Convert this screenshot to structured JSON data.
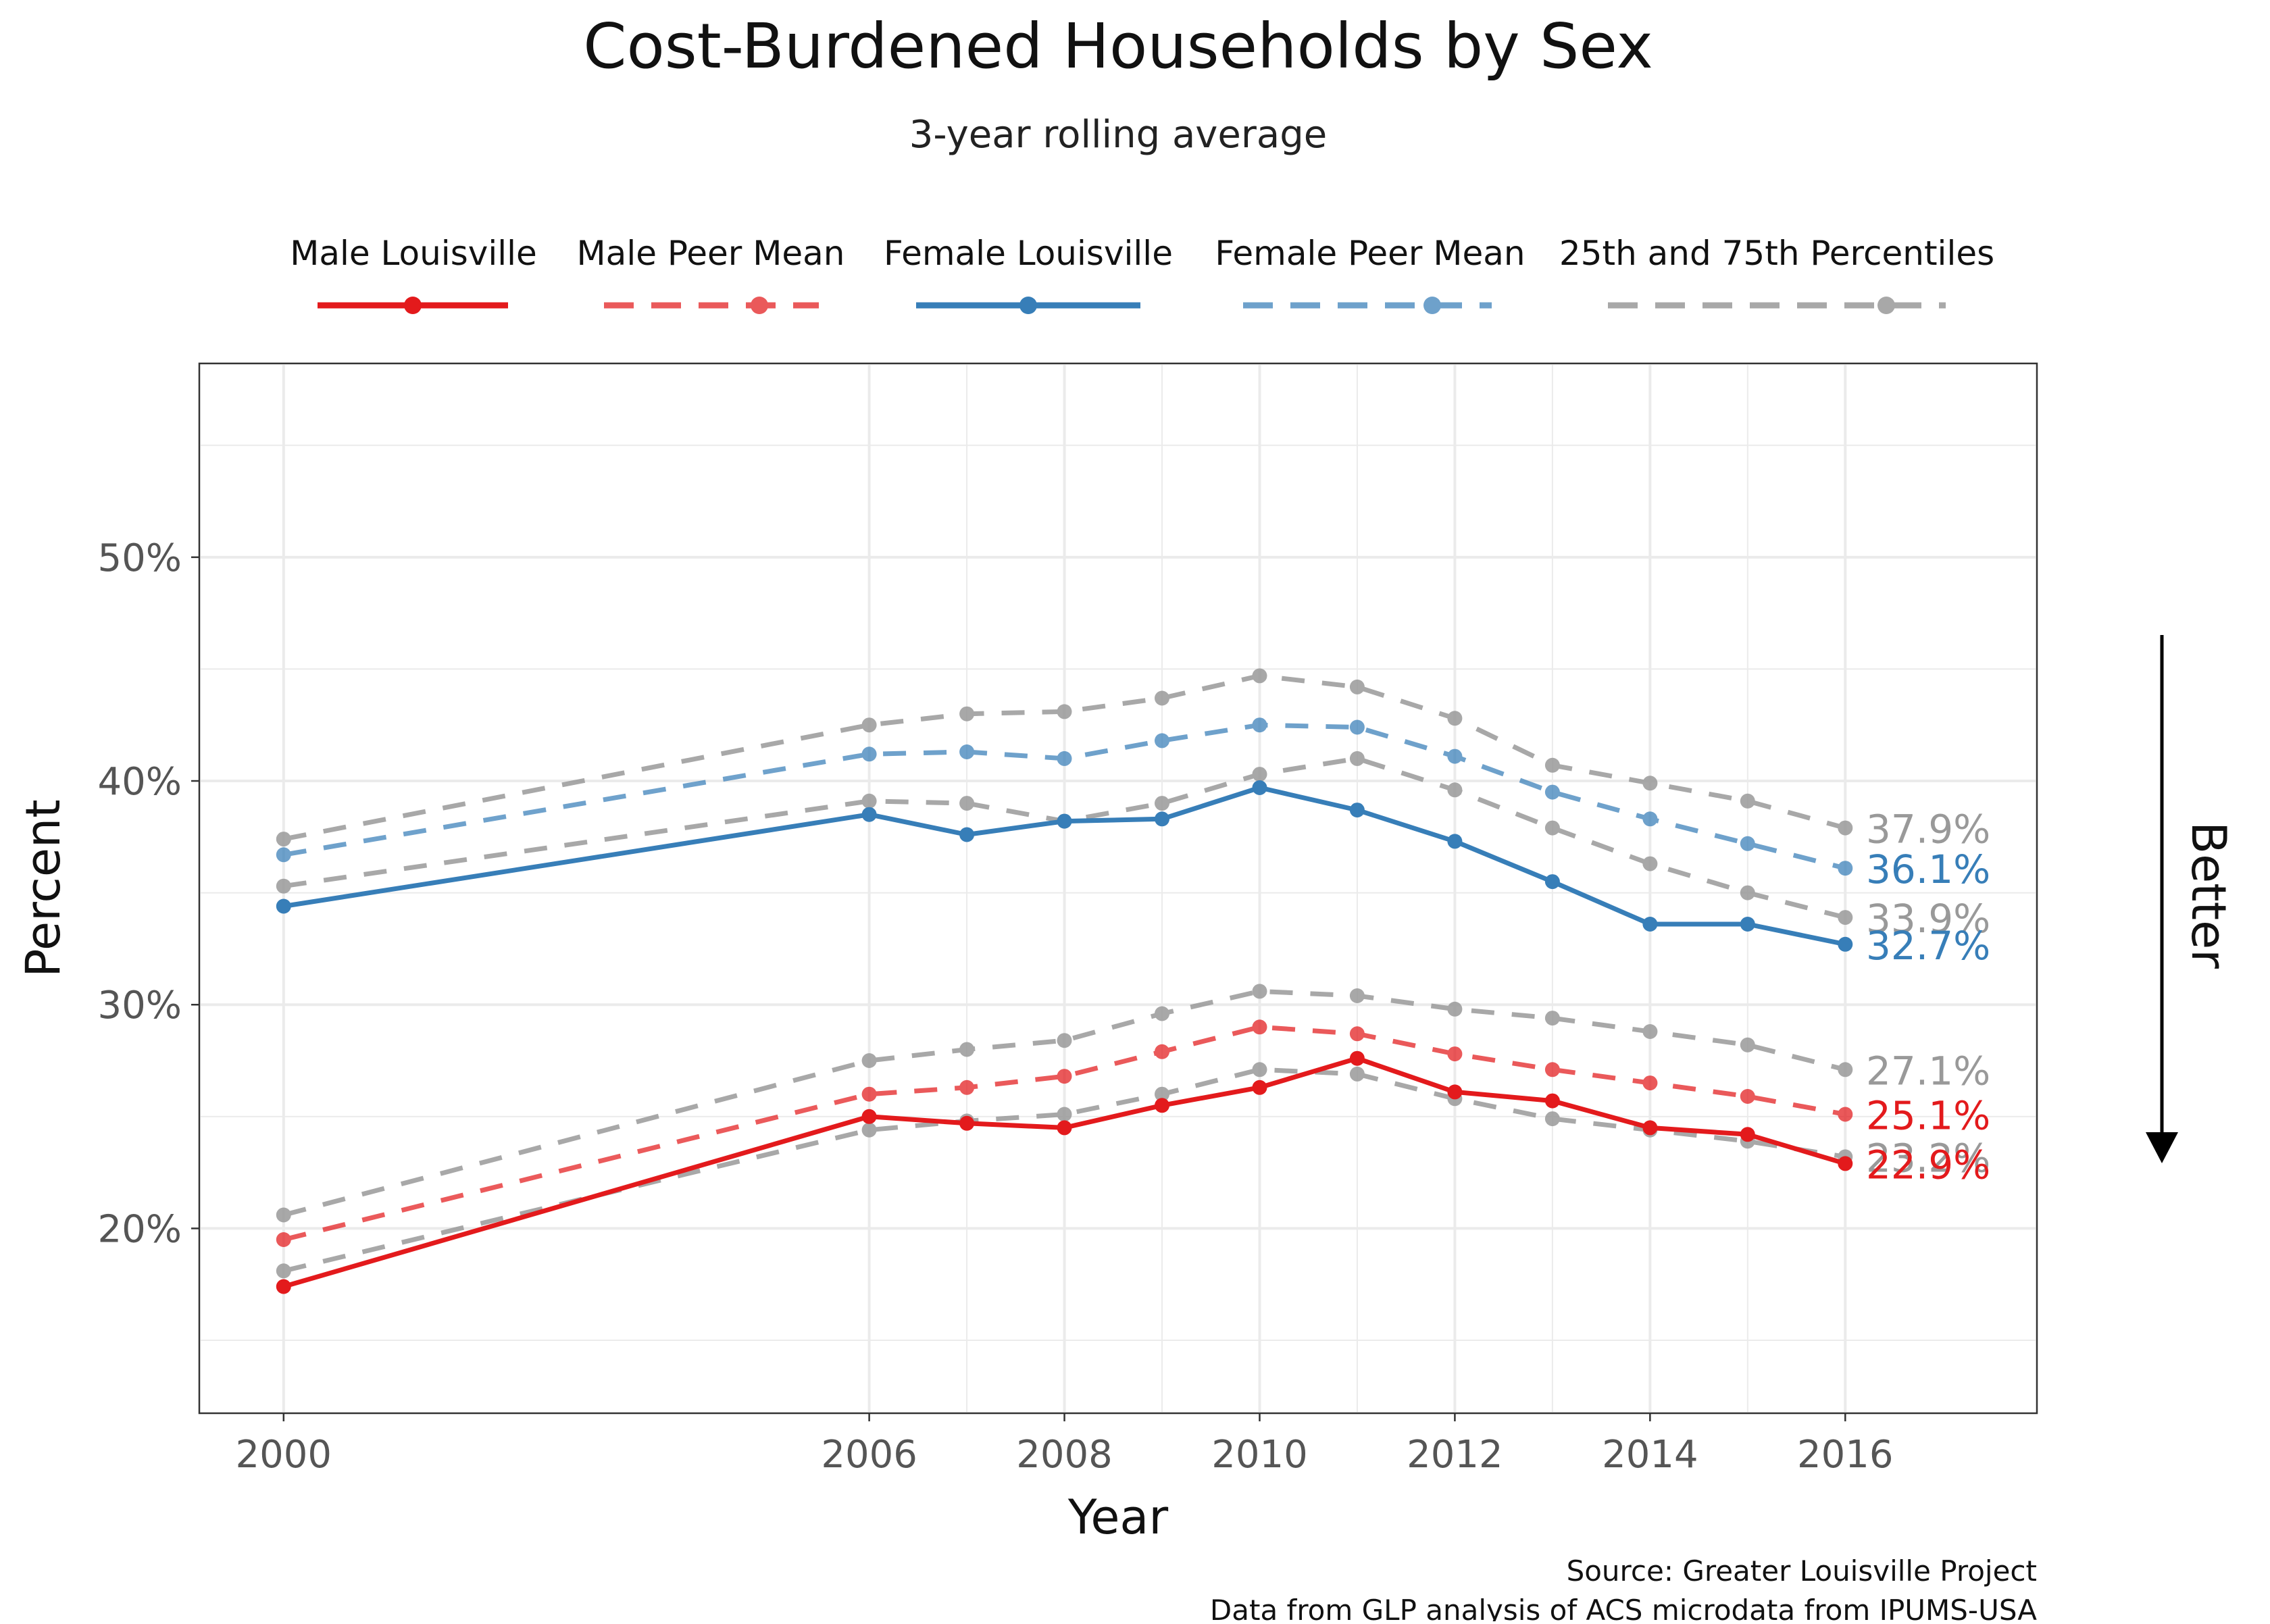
{
  "title": "Cost-Burdened Households by Sex",
  "subtitle": "3-year rolling average",
  "source_line1": "Source: Greater Louisville Project",
  "source_line2": "Data from GLP analysis of ACS microdata from IPUMS-USA",
  "better_label": "Better",
  "colors": {
    "male": "#e31a1c",
    "female": "#377eb8",
    "percentile": "#999999",
    "tick_text": "#555555",
    "grid": "#ebebeb"
  },
  "chart_data": {
    "type": "line",
    "title": "Cost-Burdened Households by Sex",
    "xlabel": "Year",
    "ylabel": "Percent",
    "xlim": [
      1999.15,
      2017.95
    ],
    "ylim": [
      11.8,
      58.6
    ],
    "grid": true,
    "legend_position": "top",
    "x_ticks": [
      2000,
      2006,
      2008,
      2010,
      2012,
      2014,
      2016
    ],
    "x_tick_labels": [
      "2000",
      "2006",
      "2008",
      "2010",
      "2012",
      "2014",
      "2016"
    ],
    "x_minor_ticks": [
      2007,
      2009,
      2011,
      2013,
      2015
    ],
    "y_ticks": [
      20,
      30,
      40,
      50
    ],
    "y_tick_labels": [
      "20%",
      "30%",
      "40%",
      "50%"
    ],
    "y_minor_ticks": [
      15,
      25,
      35,
      45,
      55
    ],
    "x": [
      2000,
      2006,
      2007,
      2008,
      2009,
      2010,
      2011,
      2012,
      2013,
      2014,
      2015,
      2016
    ],
    "legend": [
      "Male Louisville",
      "Male Peer Mean",
      "Female Louisville",
      "Female Peer Mean",
      "25th and 75th Percentiles"
    ],
    "series": [
      {
        "name": "25th and 75th Percentiles",
        "group": "female",
        "role": "percentile",
        "color": "#999999",
        "values": [
          37.4,
          42.5,
          43.0,
          43.1,
          43.7,
          44.7,
          44.2,
          42.8,
          40.7,
          39.9,
          39.1,
          37.9
        ]
      },
      {
        "name": "25th and 75th Percentiles",
        "group": "female",
        "role": "percentile",
        "color": "#999999",
        "values": [
          35.3,
          39.1,
          39.0,
          38.2,
          39.0,
          40.3,
          41.0,
          39.6,
          37.9,
          36.3,
          35.0,
          33.9
        ]
      },
      {
        "name": "25th and 75th Percentiles",
        "group": "male",
        "role": "percentile",
        "color": "#999999",
        "values": [
          20.6,
          27.5,
          28.0,
          28.4,
          29.6,
          30.6,
          30.4,
          29.8,
          29.4,
          28.8,
          28.2,
          27.1
        ]
      },
      {
        "name": "25th and 75th Percentiles",
        "group": "male",
        "role": "percentile",
        "color": "#999999",
        "values": [
          18.1,
          24.4,
          24.8,
          25.1,
          26.0,
          27.1,
          26.9,
          25.8,
          24.9,
          24.4,
          23.9,
          23.2
        ]
      },
      {
        "name": "Female Peer Mean",
        "group": "female",
        "role": "peer",
        "color": "#377eb8",
        "values": [
          36.7,
          41.2,
          41.3,
          41.0,
          41.8,
          42.5,
          42.4,
          41.1,
          39.5,
          38.3,
          37.2,
          36.1
        ]
      },
      {
        "name": "Male Peer Mean",
        "group": "male",
        "role": "peer",
        "color": "#e31a1c",
        "values": [
          19.5,
          26.0,
          26.3,
          26.8,
          27.9,
          29.0,
          28.7,
          27.8,
          27.1,
          26.5,
          25.9,
          25.1
        ]
      },
      {
        "name": "Female Louisville",
        "group": "female",
        "role": "louisville",
        "color": "#377eb8",
        "values": [
          34.4,
          38.5,
          37.6,
          38.2,
          38.3,
          39.7,
          38.7,
          37.3,
          35.5,
          33.6,
          33.6,
          32.7
        ]
      },
      {
        "name": "Male Louisville",
        "group": "male",
        "role": "louisville",
        "color": "#e31a1c",
        "values": [
          17.4,
          25.0,
          24.7,
          24.5,
          25.5,
          26.3,
          27.6,
          26.1,
          25.7,
          24.5,
          24.2,
          22.9
        ]
      }
    ],
    "end_labels": [
      {
        "text": "37.9%",
        "value": 37.9,
        "color": "#999999"
      },
      {
        "text": "36.1%",
        "value": 36.1,
        "color": "#377eb8"
      },
      {
        "text": "33.9%",
        "value": 33.9,
        "color": "#999999"
      },
      {
        "text": "32.7%",
        "value": 32.7,
        "color": "#377eb8"
      },
      {
        "text": "27.1%",
        "value": 27.1,
        "color": "#999999"
      },
      {
        "text": "25.1%",
        "value": 25.1,
        "color": "#e31a1c"
      },
      {
        "text": "23.2%",
        "value": 23.2,
        "color": "#999999"
      },
      {
        "text": "22.9%",
        "value": 22.9,
        "color": "#e31a1c"
      }
    ]
  }
}
